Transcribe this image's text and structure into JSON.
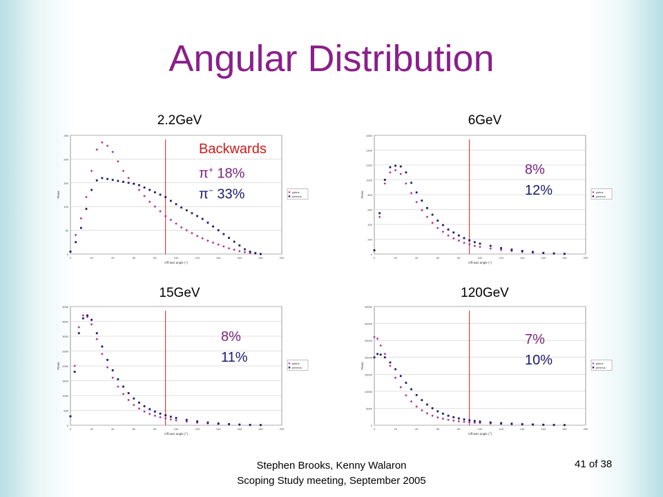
{
  "title": "Angular Distribution",
  "annotations": {
    "p1_line1": "Backwards",
    "p1_line2_sym": "π",
    "p1_line2_sup": "+",
    "p1_line2_val": " 18%",
    "p1_line3_sym": "π",
    "p1_line3_sup": "−",
    "p1_line3_val": " 33%",
    "p2_line1": "8%",
    "p2_line2": "12%",
    "p3_line1": "8%",
    "p3_line2": "11%",
    "p4_line1": "7%",
    "p4_line2": "10%"
  },
  "footer": {
    "line1": "Stephen Brooks, Kenny Walaron",
    "line2": "Scoping Study meeting, September 2005",
    "page": "41 of 38"
  },
  "colors": {
    "title": "#8a1f8a",
    "piplus": "#b0308a",
    "piminus": "#1a1a6e",
    "cutline": "#cc1a1a"
  },
  "chart_data": [
    {
      "type": "scatter",
      "title": "2.2GeV",
      "xlabel": "Off-axis angle (°)",
      "ylabel": "Pions",
      "xlim": [
        0,
        200
      ],
      "ylim": [
        0,
        250
      ],
      "xticks": [
        0,
        20,
        40,
        60,
        80,
        100,
        120,
        140,
        160,
        180,
        200
      ],
      "yticks": [
        0,
        50,
        100,
        150,
        200,
        250
      ],
      "cut_x": 90,
      "legend": [
        "piplus",
        "piminus"
      ],
      "legend_position": "right",
      "grid": true,
      "series": [
        {
          "name": "piplus",
          "x": [
            0,
            5,
            10,
            15,
            20,
            25,
            30,
            35,
            40,
            45,
            50,
            55,
            60,
            65,
            70,
            75,
            80,
            85,
            90,
            95,
            100,
            105,
            110,
            115,
            120,
            125,
            130,
            135,
            140,
            145,
            150,
            155,
            160,
            165,
            170,
            175,
            180
          ],
          "y": [
            5,
            40,
            75,
            120,
            175,
            220,
            235,
            228,
            215,
            195,
            175,
            160,
            148,
            135,
            122,
            110,
            100,
            90,
            80,
            72,
            64,
            56,
            50,
            44,
            38,
            33,
            28,
            24,
            20,
            16,
            12,
            9,
            6,
            4,
            2,
            1,
            0
          ]
        },
        {
          "name": "piminus",
          "x": [
            0,
            5,
            10,
            15,
            20,
            25,
            30,
            35,
            40,
            45,
            50,
            55,
            60,
            65,
            70,
            75,
            80,
            85,
            90,
            95,
            100,
            105,
            110,
            115,
            120,
            125,
            130,
            135,
            140,
            145,
            150,
            155,
            160,
            165,
            170,
            175,
            180
          ],
          "y": [
            5,
            25,
            55,
            95,
            135,
            155,
            160,
            158,
            156,
            154,
            152,
            150,
            148,
            145,
            140,
            135,
            130,
            125,
            120,
            112,
            105,
            98,
            92,
            86,
            80,
            74,
            66,
            58,
            50,
            42,
            34,
            26,
            18,
            10,
            5,
            2,
            0
          ]
        }
      ]
    },
    {
      "type": "scatter",
      "title": "6GeV",
      "xlabel": "Off-axis angle (°)",
      "ylabel": "Pions",
      "xlim": [
        0,
        200
      ],
      "ylim": [
        0,
        1600
      ],
      "xticks": [
        0,
        20,
        40,
        60,
        80,
        100,
        120,
        140,
        160,
        180,
        200
      ],
      "yticks": [
        0,
        200,
        400,
        600,
        800,
        1000,
        1200,
        1400,
        1600
      ],
      "cut_x": 90,
      "legend": [
        "piplus",
        "piminus"
      ],
      "legend_position": "right",
      "grid": true,
      "series": [
        {
          "name": "piplus",
          "x": [
            0,
            5,
            10,
            15,
            20,
            25,
            30,
            35,
            40,
            45,
            50,
            55,
            60,
            65,
            70,
            75,
            80,
            85,
            90,
            95,
            100,
            110,
            120,
            130,
            140,
            150,
            160,
            170,
            180
          ],
          "y": [
            50,
            500,
            950,
            1100,
            1130,
            1080,
            950,
            820,
            700,
            590,
            500,
            420,
            350,
            300,
            250,
            210,
            180,
            150,
            130,
            110,
            95,
            75,
            55,
            40,
            28,
            18,
            10,
            5,
            2
          ]
        },
        {
          "name": "piminus",
          "x": [
            0,
            5,
            10,
            15,
            20,
            25,
            30,
            35,
            40,
            45,
            50,
            55,
            60,
            65,
            70,
            75,
            80,
            85,
            90,
            95,
            100,
            110,
            120,
            130,
            140,
            150,
            160,
            170,
            180
          ],
          "y": [
            50,
            550,
            1000,
            1170,
            1190,
            1180,
            1100,
            960,
            830,
            720,
            620,
            530,
            450,
            390,
            330,
            290,
            250,
            215,
            185,
            160,
            140,
            110,
            80,
            60,
            42,
            28,
            16,
            8,
            3
          ]
        }
      ]
    },
    {
      "type": "scatter",
      "title": "15GeV",
      "xlabel": "Off-axis angle (°)",
      "ylabel": "Pions",
      "xlim": [
        0,
        200
      ],
      "ylim": [
        0,
        4000
      ],
      "xticks": [
        0,
        20,
        40,
        60,
        80,
        100,
        120,
        140,
        160,
        180,
        200
      ],
      "yticks": [
        0,
        500,
        1000,
        1500,
        2000,
        2500,
        3000,
        3500,
        4000
      ],
      "cut_x": 90,
      "legend": [
        "piplus",
        "piminus"
      ],
      "legend_position": "right",
      "grid": true,
      "series": [
        {
          "name": "piplus",
          "x": [
            0,
            4,
            8,
            12,
            16,
            20,
            25,
            30,
            35,
            40,
            45,
            50,
            55,
            60,
            65,
            70,
            75,
            80,
            85,
            90,
            95,
            100,
            110,
            120,
            130,
            140,
            150,
            160,
            170,
            180
          ],
          "y": [
            300,
            2000,
            3300,
            3700,
            3650,
            3400,
            2900,
            2400,
            1950,
            1600,
            1300,
            1050,
            850,
            680,
            560,
            460,
            380,
            320,
            270,
            230,
            195,
            165,
            120,
            85,
            60,
            40,
            26,
            15,
            8,
            4
          ]
        },
        {
          "name": "piminus",
          "x": [
            0,
            4,
            8,
            12,
            16,
            20,
            25,
            30,
            35,
            40,
            45,
            50,
            55,
            60,
            65,
            70,
            75,
            80,
            85,
            90,
            95,
            100,
            110,
            120,
            130,
            140,
            150,
            160,
            170,
            180
          ],
          "y": [
            300,
            1800,
            3100,
            3600,
            3700,
            3550,
            3100,
            2650,
            2200,
            1850,
            1550,
            1300,
            1080,
            900,
            760,
            640,
            540,
            460,
            390,
            335,
            285,
            245,
            180,
            130,
            90,
            60,
            38,
            22,
            12,
            5
          ]
        }
      ]
    },
    {
      "type": "scatter",
      "title": "120GeV",
      "xlabel": "Off-axis angle (°)",
      "ylabel": "Pions",
      "xlim": [
        0,
        200
      ],
      "ylim": [
        0,
        35000
      ],
      "xticks": [
        0,
        20,
        40,
        60,
        80,
        100,
        120,
        140,
        160,
        180,
        200
      ],
      "yticks": [
        0,
        5000,
        10000,
        15000,
        20000,
        25000,
        30000,
        35000
      ],
      "cut_x": 90,
      "legend": [
        "piplus",
        "piminus"
      ],
      "legend_position": "right",
      "grid": true,
      "series": [
        {
          "name": "piplus",
          "x": [
            0,
            3,
            6,
            10,
            15,
            20,
            25,
            30,
            35,
            40,
            45,
            50,
            55,
            60,
            65,
            70,
            75,
            80,
            85,
            90,
            95,
            100,
            110,
            120,
            130,
            140,
            150,
            160,
            170,
            180
          ],
          "y": [
            26000,
            25500,
            23500,
            21000,
            17500,
            14000,
            11200,
            8800,
            7000,
            5500,
            4400,
            3500,
            2800,
            2300,
            1900,
            1600,
            1350,
            1150,
            1000,
            870,
            760,
            660,
            500,
            380,
            280,
            200,
            140,
            90,
            50,
            25
          ]
        },
        {
          "name": "piminus",
          "x": [
            0,
            3,
            6,
            10,
            15,
            20,
            25,
            30,
            35,
            40,
            45,
            50,
            55,
            60,
            65,
            70,
            75,
            80,
            85,
            90,
            95,
            100,
            110,
            120,
            130,
            140,
            150,
            160,
            170,
            180
          ],
          "y": [
            20000,
            21000,
            20800,
            20000,
            18500,
            16500,
            14500,
            12500,
            10600,
            8900,
            7400,
            6100,
            5000,
            4100,
            3400,
            2800,
            2350,
            2000,
            1700,
            1450,
            1250,
            1080,
            820,
            620,
            460,
            330,
            230,
            150,
            90,
            45
          ]
        }
      ]
    }
  ]
}
